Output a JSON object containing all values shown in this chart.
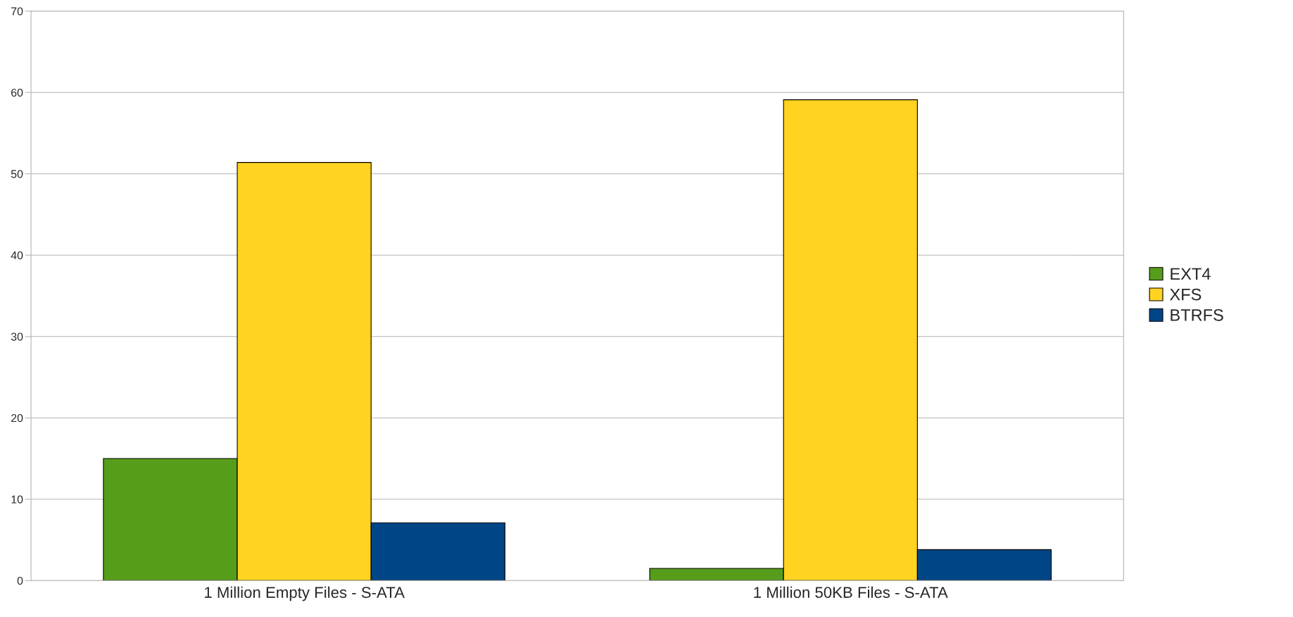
{
  "chart_data": {
    "type": "bar",
    "categories": [
      "1 Million Empty Files - S-ATA",
      "1 Million 50KB Files - S-ATA"
    ],
    "series": [
      {
        "name": "EXT4",
        "color": "#579d1c",
        "values": [
          15,
          1.5
        ]
      },
      {
        "name": "XFS",
        "color": "#ffd320",
        "values": [
          51.4,
          59.1
        ]
      },
      {
        "name": "BTRFS",
        "color": "#004586",
        "values": [
          7.1,
          3.8
        ]
      }
    ],
    "ylim": [
      0,
      70
    ],
    "yticks": [
      0,
      10,
      20,
      30,
      40,
      50,
      60,
      70
    ],
    "grid": "y",
    "legend": "right"
  }
}
